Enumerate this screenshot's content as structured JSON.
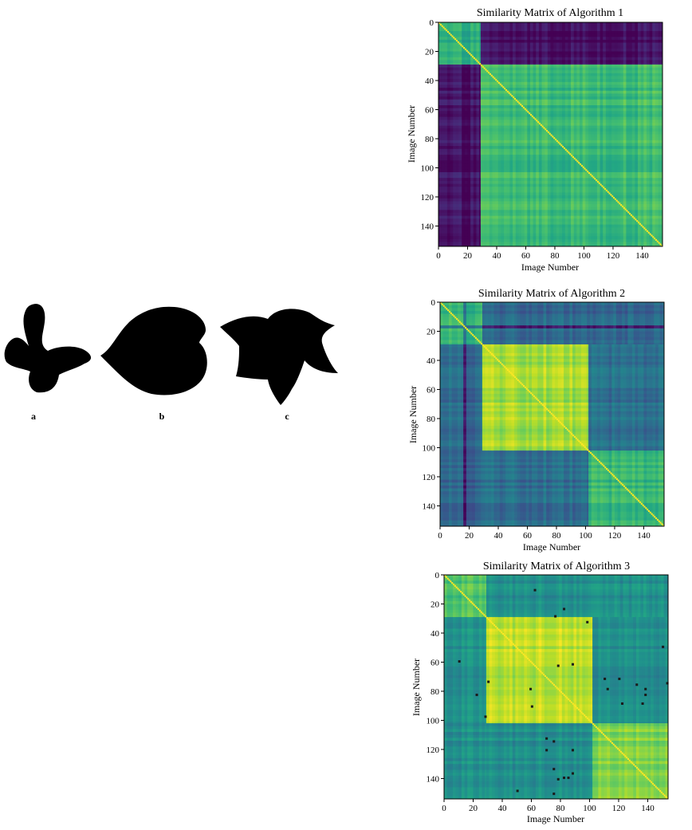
{
  "shapes_panel": {
    "labels": [
      "a",
      "b",
      "c"
    ],
    "fill": "#000000"
  },
  "chart_data": [
    {
      "type": "heatmap",
      "title": "Similarity Matrix of Algorithm 1",
      "xlabel": "Image Number",
      "ylabel": "Image Number",
      "n": 154,
      "xlim": [
        0,
        154
      ],
      "ylim": [
        154,
        0
      ],
      "xticks": [
        0,
        20,
        40,
        60,
        80,
        100,
        120,
        140
      ],
      "yticks": [
        0,
        20,
        40,
        60,
        80,
        100,
        120,
        140
      ],
      "colormap": "viridis",
      "blocks": [
        {
          "rows": [
            0,
            29
          ],
          "cols": [
            0,
            29
          ],
          "value": 0.62
        },
        {
          "rows": [
            0,
            29
          ],
          "cols": [
            29,
            154
          ],
          "value": 0.04
        },
        {
          "rows": [
            29,
            154
          ],
          "cols": [
            0,
            29
          ],
          "value": 0.04
        },
        {
          "rows": [
            29,
            154
          ],
          "cols": [
            29,
            154
          ],
          "value": 0.68
        }
      ],
      "dark_lines": [],
      "outliers": []
    },
    {
      "type": "heatmap",
      "title": "Similarity Matrix of Algorithm 2",
      "xlabel": "Image Number",
      "ylabel": "Image Number",
      "n": 154,
      "xlim": [
        0,
        154
      ],
      "ylim": [
        154,
        0
      ],
      "xticks": [
        0,
        20,
        40,
        60,
        80,
        100,
        120,
        140
      ],
      "yticks": [
        0,
        20,
        40,
        60,
        80,
        100,
        120,
        140
      ],
      "colormap": "viridis",
      "blocks": [
        {
          "rows": [
            0,
            29
          ],
          "cols": [
            0,
            29
          ],
          "value": 0.66
        },
        {
          "rows": [
            0,
            29
          ],
          "cols": [
            29,
            154
          ],
          "value": 0.34
        },
        {
          "rows": [
            29,
            102
          ],
          "cols": [
            0,
            29
          ],
          "value": 0.34
        },
        {
          "rows": [
            29,
            102
          ],
          "cols": [
            29,
            102
          ],
          "value": 0.86
        },
        {
          "rows": [
            29,
            102
          ],
          "cols": [
            102,
            154
          ],
          "value": 0.36
        },
        {
          "rows": [
            102,
            154
          ],
          "cols": [
            0,
            29
          ],
          "value": 0.32
        },
        {
          "rows": [
            102,
            154
          ],
          "cols": [
            29,
            102
          ],
          "value": 0.36
        },
        {
          "rows": [
            102,
            154
          ],
          "cols": [
            102,
            154
          ],
          "value": 0.66
        }
      ],
      "dark_lines": [
        16,
        21
      ],
      "outliers": []
    },
    {
      "type": "heatmap",
      "title": "Similarity Matrix of Algorithm 3",
      "xlabel": "Image Number",
      "ylabel": "Image Number",
      "n": 154,
      "xlim": [
        0,
        154
      ],
      "ylim": [
        154,
        0
      ],
      "xticks": [
        0,
        20,
        40,
        60,
        80,
        100,
        120,
        140
      ],
      "yticks": [
        0,
        20,
        40,
        60,
        80,
        100,
        120,
        140
      ],
      "colormap": "viridis",
      "blocks": [
        {
          "rows": [
            0,
            29
          ],
          "cols": [
            0,
            29
          ],
          "value": 0.72
        },
        {
          "rows": [
            0,
            29
          ],
          "cols": [
            29,
            154
          ],
          "value": 0.5
        },
        {
          "rows": [
            29,
            102
          ],
          "cols": [
            0,
            29
          ],
          "value": 0.5
        },
        {
          "rows": [
            29,
            102
          ],
          "cols": [
            29,
            102
          ],
          "value": 0.9
        },
        {
          "rows": [
            29,
            102
          ],
          "cols": [
            102,
            154
          ],
          "value": 0.5
        },
        {
          "rows": [
            102,
            154
          ],
          "cols": [
            0,
            29
          ],
          "value": 0.5
        },
        {
          "rows": [
            102,
            154
          ],
          "cols": [
            29,
            102
          ],
          "value": 0.5
        },
        {
          "rows": [
            102,
            154
          ],
          "cols": [
            102,
            154
          ],
          "value": 0.82
        }
      ],
      "dark_lines": [],
      "outliers": [
        [
          62,
          10
        ],
        [
          82,
          23
        ],
        [
          76,
          28
        ],
        [
          98,
          32
        ],
        [
          88,
          61
        ],
        [
          78,
          62
        ],
        [
          10,
          59
        ],
        [
          150,
          49
        ],
        [
          153,
          74
        ],
        [
          30,
          73
        ],
        [
          59,
          78
        ],
        [
          110,
          71
        ],
        [
          120,
          71
        ],
        [
          112,
          78
        ],
        [
          132,
          75
        ],
        [
          138,
          78
        ],
        [
          138,
          82
        ],
        [
          122,
          88
        ],
        [
          136,
          88
        ],
        [
          22,
          82
        ],
        [
          60,
          90
        ],
        [
          28,
          97
        ],
        [
          70,
          112
        ],
        [
          75,
          114
        ],
        [
          70,
          120
        ],
        [
          88,
          120
        ],
        [
          75,
          133
        ],
        [
          88,
          136
        ],
        [
          82,
          139
        ],
        [
          85,
          139
        ],
        [
          78,
          140
        ],
        [
          75,
          150
        ],
        [
          50,
          148
        ]
      ]
    }
  ]
}
